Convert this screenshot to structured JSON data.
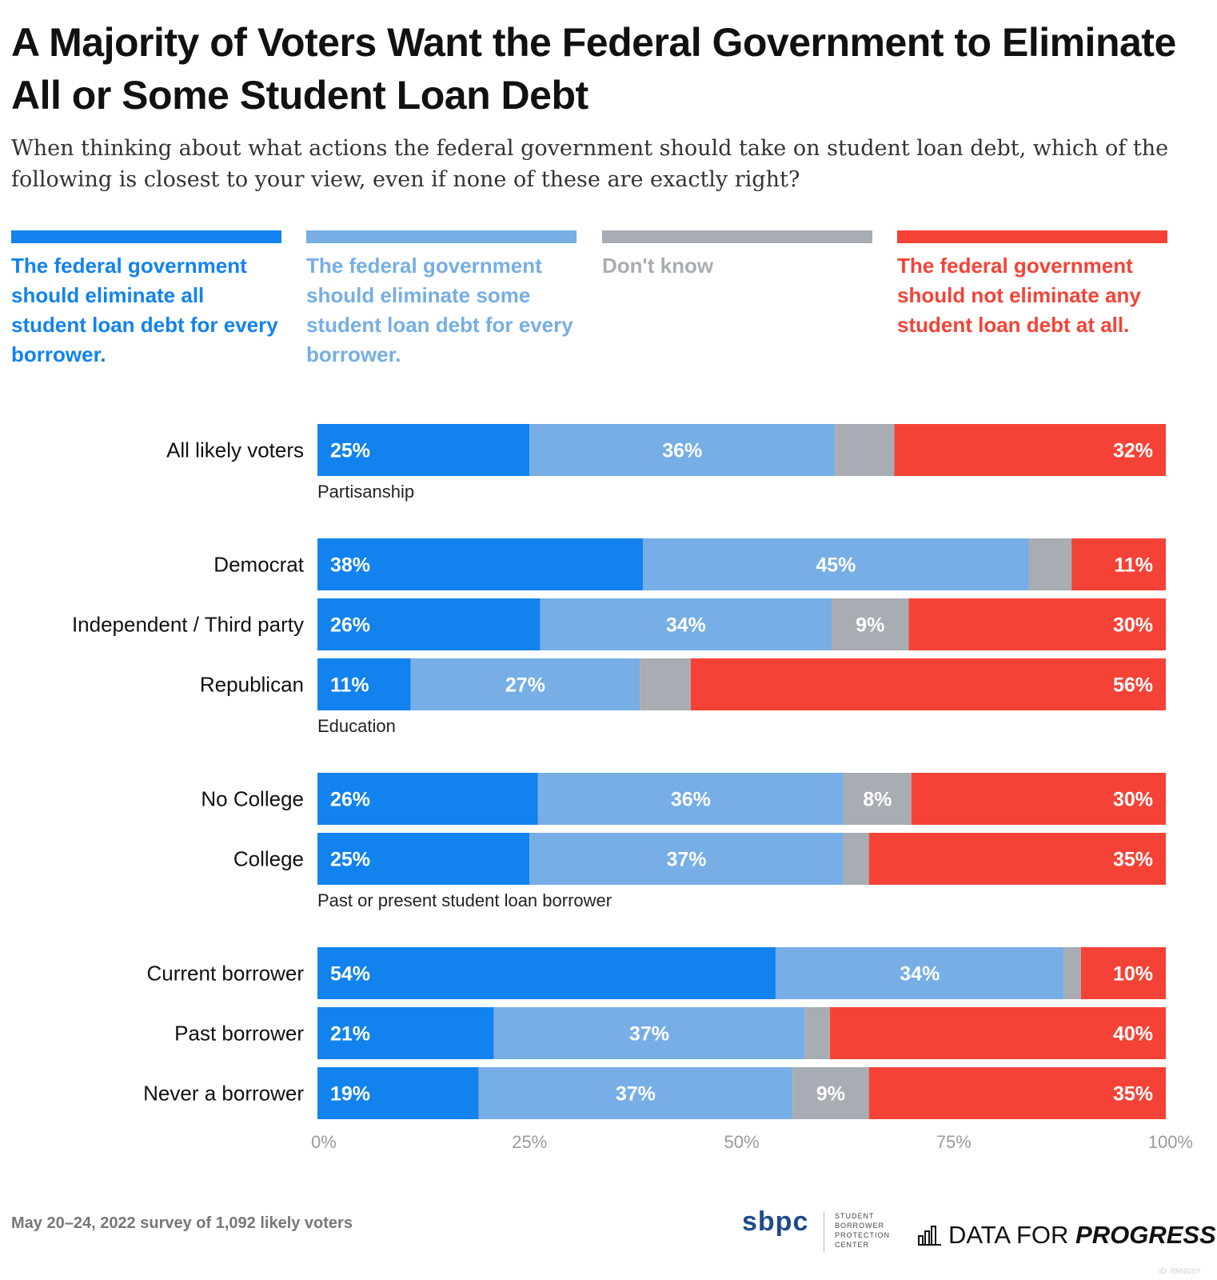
{
  "header": {
    "title": "A Majority of Voters Want the Federal Government to Eliminate All or Some Student Loan Debt",
    "subtitle": "When thinking about what actions the federal government should take on student loan debt, which of the following is closest to your view, even if none of these are exactly right?"
  },
  "legend": [
    {
      "label": "The federal government should eliminate all student loan debt for every borrower.",
      "color": "#1282ee",
      "text_color": "#1282ee"
    },
    {
      "label": "The federal government should eliminate some student loan debt for every borrower.",
      "color": "#76aee5",
      "text_color": "#76aee5"
    },
    {
      "label": "Don't know",
      "color": "#a8adb3",
      "text_color": "#a8adb3"
    },
    {
      "label": "The federal government should not eliminate any student loan debt at all.",
      "color": "#f44336",
      "text_color": "#f44336"
    }
  ],
  "chart_data": {
    "type": "bar",
    "orientation": "horizontal",
    "stacked": true,
    "series": [
      {
        "name": "The federal government should eliminate all student loan debt for every borrower.",
        "color": "#1282ee"
      },
      {
        "name": "The federal government should eliminate some student loan debt for every borrower.",
        "color": "#76aee5"
      },
      {
        "name": "Don't know",
        "color": "#a8adb3"
      },
      {
        "name": "The federal government should not eliminate any student loan debt at all.",
        "color": "#f44336"
      }
    ],
    "groups": [
      {
        "heading": "",
        "rows": [
          {
            "category": "All likely voters",
            "values": [
              25,
              36,
              7,
              32
            ],
            "labels": [
              "25%",
              "36%",
              "",
              "32%"
            ]
          }
        ]
      },
      {
        "heading": "Partisanship",
        "rows": [
          {
            "category": "Democrat",
            "values": [
              38,
              45,
              5,
              11
            ],
            "labels": [
              "38%",
              "45%",
              "",
              "11%"
            ]
          },
          {
            "category": "Independent / Third party",
            "values": [
              26,
              34,
              9,
              30
            ],
            "labels": [
              "26%",
              "34%",
              "9%",
              "30%"
            ]
          },
          {
            "category": "Republican",
            "values": [
              11,
              27,
              6,
              56
            ],
            "labels": [
              "11%",
              "27%",
              "",
              "56%"
            ]
          }
        ]
      },
      {
        "heading": "Education",
        "rows": [
          {
            "category": "No College",
            "values": [
              26,
              36,
              8,
              30
            ],
            "labels": [
              "26%",
              "36%",
              "8%",
              "30%"
            ]
          },
          {
            "category": "College",
            "values": [
              25,
              37,
              3,
              35
            ],
            "labels": [
              "25%",
              "37%",
              "",
              "35%"
            ]
          }
        ]
      },
      {
        "heading": "Past or present student loan borrower",
        "rows": [
          {
            "category": "Current borrower",
            "values": [
              54,
              34,
              2,
              10
            ],
            "labels": [
              "54%",
              "34%",
              "",
              "10%"
            ]
          },
          {
            "category": "Past borrower",
            "values": [
              21,
              37,
              3,
              40
            ],
            "labels": [
              "21%",
              "37%",
              "",
              "40%"
            ]
          },
          {
            "category": "Never a borrower",
            "values": [
              19,
              37,
              9,
              35
            ],
            "labels": [
              "19%",
              "37%",
              "9%",
              "35%"
            ]
          }
        ]
      }
    ],
    "x_ticks": [
      "0%",
      "25%",
      "50%",
      "75%",
      "100%"
    ],
    "xlim": [
      0,
      100
    ],
    "grid": false
  },
  "footer": {
    "note": "May 20–24, 2022 survey of 1,092 likely voters",
    "sbpc_mark": "sbpc",
    "sbpc_words": [
      "STUDENT",
      "BORROWER",
      "PROTECTION",
      "CENTER"
    ],
    "dfp_regular": "DATA FOR ",
    "dfp_bold": "PROGRESS",
    "id_tag": "ID: RRNGSY"
  }
}
